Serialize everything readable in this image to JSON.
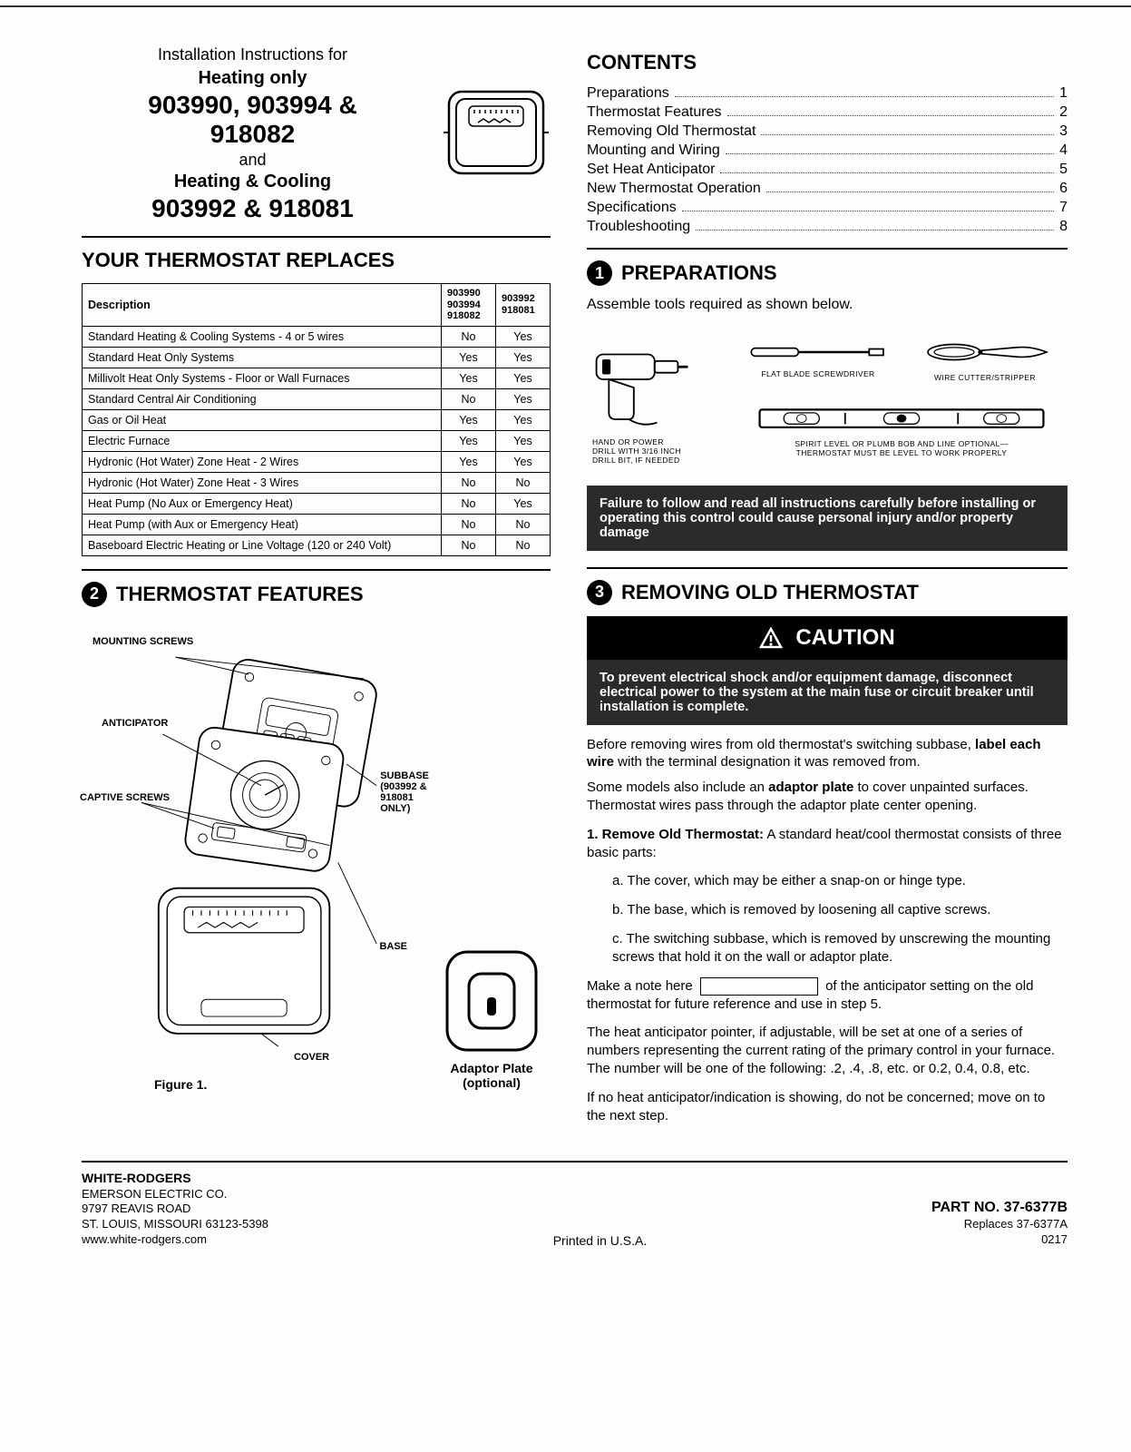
{
  "header": {
    "intro_line1": "Installation Instructions for",
    "heating_only": "Heating only",
    "models_line1": "903990, 903994 &",
    "models_line2": "918082",
    "and": "and",
    "heating_cooling": "Heating & Cooling",
    "models_line3": "903992 & 918081"
  },
  "contents": {
    "title": "CONTENTS",
    "items": [
      {
        "label": "Preparations",
        "page": "1"
      },
      {
        "label": "Thermostat Features",
        "page": "2"
      },
      {
        "label": "Removing Old Thermostat",
        "page": "3"
      },
      {
        "label": "Mounting and Wiring",
        "page": "4"
      },
      {
        "label": "Set Heat Anticipator",
        "page": "5"
      },
      {
        "label": "New Thermostat Operation",
        "page": "6"
      },
      {
        "label": "Specifications",
        "page": "7"
      },
      {
        "label": "Troubleshooting",
        "page": "8"
      }
    ]
  },
  "replaces": {
    "title": "YOUR THERMOSTAT REPLACES",
    "headers": [
      "Description",
      "903990\n903994\n918082",
      "903992\n918081"
    ],
    "rows": [
      [
        "Standard Heating & Cooling Systems - 4 or 5 wires",
        "No",
        "Yes"
      ],
      [
        "Standard Heat Only Systems",
        "Yes",
        "Yes"
      ],
      [
        "Millivolt Heat Only Systems - Floor or Wall Furnaces",
        "Yes",
        "Yes"
      ],
      [
        "Standard Central Air Conditioning",
        "No",
        "Yes"
      ],
      [
        "Gas or Oil Heat",
        "Yes",
        "Yes"
      ],
      [
        "Electric Furnace",
        "Yes",
        "Yes"
      ],
      [
        "Hydronic (Hot Water) Zone Heat  - 2 Wires",
        "Yes",
        "Yes"
      ],
      [
        "Hydronic (Hot Water) Zone Heat  - 3 Wires",
        "No",
        "No"
      ],
      [
        "Heat Pump (No Aux or Emergency Heat)",
        "No",
        "Yes"
      ],
      [
        "Heat Pump  (with Aux or Emergency Heat)",
        "No",
        "No"
      ],
      [
        "Baseboard Electric Heating or Line Voltage (120 or 240 Volt)",
        "No",
        "No"
      ]
    ]
  },
  "preparations": {
    "num": "1",
    "title": "PREPARATIONS",
    "subtitle": "Assemble tools required as shown below.",
    "tool_drill": "HAND OR POWER\nDRILL WITH 3/16 INCH\nDRILL BIT, IF NEEDED",
    "tool_screwdriver": "FLAT BLADE SCREWDRIVER",
    "tool_stripper": "WIRE CUTTER/STRIPPER",
    "tool_level": "SPIRIT LEVEL OR PLUMB BOB AND LINE OPTIONAL—\nTHERMOSTAT MUST BE LEVEL TO WORK PROPERLY",
    "warning": "Failure to follow and read all instructions carefully before installing or operating this control could cause personal injury and/or property damage"
  },
  "features": {
    "num": "2",
    "title": "THERMOSTAT FEATURES",
    "labels": {
      "mounting": "MOUNTING SCREWS",
      "anticipator": "ANTICIPATOR",
      "captive": "CAPTIVE SCREWS",
      "subbase": "SUBBASE\n(903992 &\n918081\nONLY)",
      "base": "BASE",
      "cover": "COVER"
    },
    "figure_caption": "Figure 1.",
    "adaptor_caption": "Adaptor Plate\n(optional)"
  },
  "removing": {
    "num": "3",
    "title": "REMOVING OLD THERMOSTAT",
    "caution_title": "CAUTION",
    "caution_body": "To prevent electrical shock and/or equipment damage, disconnect electrical power to the system at the main fuse or circuit breaker until installation is complete.",
    "p1a": "Before removing wires from old thermostat's switching subbase, ",
    "p1b": "label each wire",
    "p1c": " with the terminal designation it was removed from.",
    "p2a": "Some models also include an ",
    "p2b": "adaptor plate",
    "p2c": " to cover unpainted surfaces. Thermostat wires pass through the adaptor plate center opening.",
    "step1_lead": "1.  Remove Old Thermostat:",
    "step1_tail": "  A standard heat/cool thermostat consists of three basic parts:",
    "sa": "a. The cover, which may be either a snap-on or hinge type.",
    "sb": "b. The base, which is removed by loosening all captive screws.",
    "sc": "c. The switching subbase, which is removed by unscrewing the mounting screws that hold it on the wall or adaptor plate.",
    "note_pre": "Make a note here ",
    "note_post": " of the anticipator setting on the old thermostat for future reference and use in step 5.",
    "p3": "The heat anticipator pointer, if adjustable, will be set at one of a series of numbers representing the current rating of the primary control in your furnace. The number will be one of the following: .2, .4, .8, etc. or 0.2, 0.4, 0.8, etc.",
    "p4": "If no heat anticipator/indication is showing, do not be concerned; move on to the next step."
  },
  "footer": {
    "brand": "WHITE-RODGERS",
    "company": "EMERSON ELECTRIC CO.",
    "addr1": "9797 REAVIS ROAD",
    "addr2": "ST. LOUIS, MISSOURI 63123-5398",
    "url": "www.white-rodgers.com",
    "printed": "Printed in U.S.A.",
    "part": "PART NO. 37-6377B",
    "replaces": "Replaces 37-6377A",
    "date": "0217"
  },
  "style": {
    "page_bg": "#fdfdfb",
    "text_color": "#000000",
    "warn_bg": "#2b2b2b",
    "warn_fg": "#ffffff"
  }
}
